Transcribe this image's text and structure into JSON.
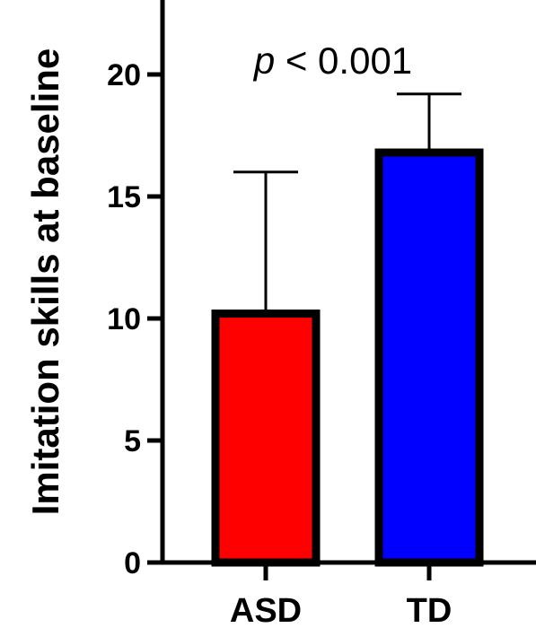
{
  "chart_data": {
    "type": "bar",
    "title": "",
    "xlabel": "",
    "ylabel": "Imitation skills at baseline",
    "ylim": [
      0,
      23
    ],
    "yticks": [
      0,
      5,
      10,
      15,
      20
    ],
    "categories": [
      "ASD",
      "TD"
    ],
    "values": [
      10.2,
      16.8
    ],
    "error_upper": [
      16.0,
      19.2
    ],
    "colors": [
      "#ff0000",
      "#0000ff"
    ],
    "annotation": {
      "italic": "p",
      "text": " < 0.001"
    }
  }
}
